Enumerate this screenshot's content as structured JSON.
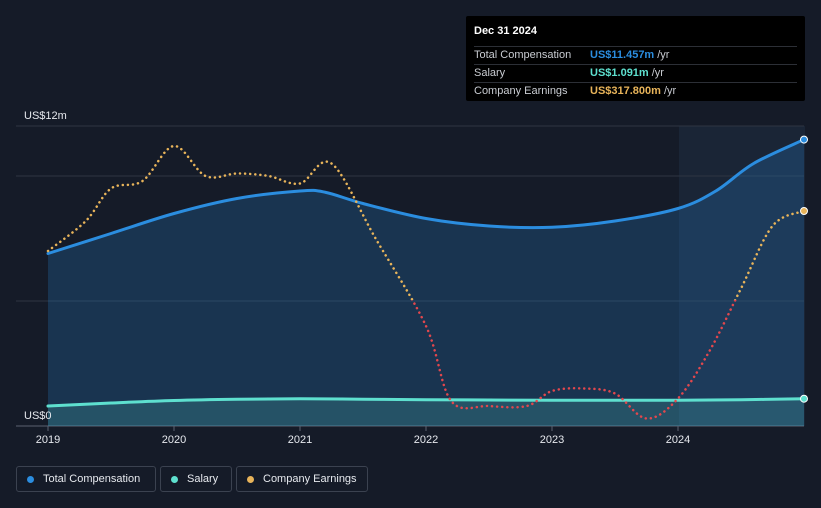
{
  "chart_data": {
    "type": "line",
    "x_ticks": [
      "2019",
      "2020",
      "2021",
      "2022",
      "2023",
      "2024"
    ],
    "x_range": [
      2019.0,
      2025.0
    ],
    "y_range": [
      0,
      12
    ],
    "y_ticks": [
      {
        "value": 12,
        "label": "US$12m"
      },
      {
        "value": 0,
        "label": "US$0"
      }
    ],
    "y_grid": [
      0,
      5,
      10,
      12
    ],
    "forecast_start": 2024.0,
    "series": [
      {
        "name": "Total Compensation",
        "color": "#2b8ddf",
        "style": "solid",
        "fill": true,
        "points": [
          [
            2019.0,
            6.9
          ],
          [
            2019.5,
            7.7
          ],
          [
            2020.0,
            8.5
          ],
          [
            2020.5,
            9.1
          ],
          [
            2021.0,
            9.4
          ],
          [
            2021.2,
            9.35
          ],
          [
            2021.5,
            8.9
          ],
          [
            2022.0,
            8.3
          ],
          [
            2022.5,
            8.0
          ],
          [
            2023.0,
            7.95
          ],
          [
            2023.5,
            8.2
          ],
          [
            2024.0,
            8.7
          ],
          [
            2024.3,
            9.4
          ],
          [
            2024.6,
            10.5
          ],
          [
            2025.0,
            11.457
          ]
        ]
      },
      {
        "name": "Salary",
        "color": "#5ee0cf",
        "style": "solid",
        "fill": true,
        "points": [
          [
            2019.0,
            0.8
          ],
          [
            2019.5,
            0.92
          ],
          [
            2020.0,
            1.02
          ],
          [
            2020.5,
            1.07
          ],
          [
            2021.0,
            1.09
          ],
          [
            2021.5,
            1.07
          ],
          [
            2022.0,
            1.05
          ],
          [
            2022.5,
            1.04
          ],
          [
            2023.0,
            1.03
          ],
          [
            2023.5,
            1.03
          ],
          [
            2024.0,
            1.03
          ],
          [
            2024.5,
            1.05
          ],
          [
            2025.0,
            1.091
          ]
        ]
      },
      {
        "name": "Company Earnings",
        "style": "dotted",
        "positive_color": "#e8b45a",
        "negative_color": "#e2474d",
        "points": [
          [
            2019.0,
            7.0
          ],
          [
            2019.3,
            8.2
          ],
          [
            2019.5,
            9.5
          ],
          [
            2019.75,
            9.8
          ],
          [
            2020.0,
            11.2
          ],
          [
            2020.25,
            10.0
          ],
          [
            2020.5,
            10.1
          ],
          [
            2020.75,
            10.0
          ],
          [
            2021.0,
            9.7
          ],
          [
            2021.25,
            10.5
          ],
          [
            2021.6,
            7.5
          ],
          [
            2022.0,
            4.0
          ],
          [
            2022.2,
            1.0
          ],
          [
            2022.5,
            0.8
          ],
          [
            2022.8,
            0.8
          ],
          [
            2023.0,
            1.4
          ],
          [
            2023.25,
            1.5
          ],
          [
            2023.5,
            1.3
          ],
          [
            2023.75,
            0.3
          ],
          [
            2024.0,
            1.1
          ],
          [
            2024.25,
            3.0
          ],
          [
            2024.5,
            5.5
          ],
          [
            2024.75,
            8.0
          ],
          [
            2025.0,
            8.6
          ]
        ]
      }
    ]
  },
  "tooltip": {
    "date": "Dec 31 2024",
    "rows": [
      {
        "label": "Total Compensation",
        "value": "US$11.457m",
        "unit": "/yr",
        "color": "#2b8ddf"
      },
      {
        "label": "Salary",
        "value": "US$1.091m",
        "unit": "/yr",
        "color": "#5ee0cf"
      },
      {
        "label": "Company Earnings",
        "value": "US$317.800m",
        "unit": "/yr",
        "color": "#e8b45a"
      }
    ]
  },
  "legend": [
    {
      "label": "Total Compensation",
      "color": "#2b8ddf"
    },
    {
      "label": "Salary",
      "color": "#5ee0cf"
    },
    {
      "label": "Company Earnings",
      "color": "#e8b45a"
    }
  ]
}
